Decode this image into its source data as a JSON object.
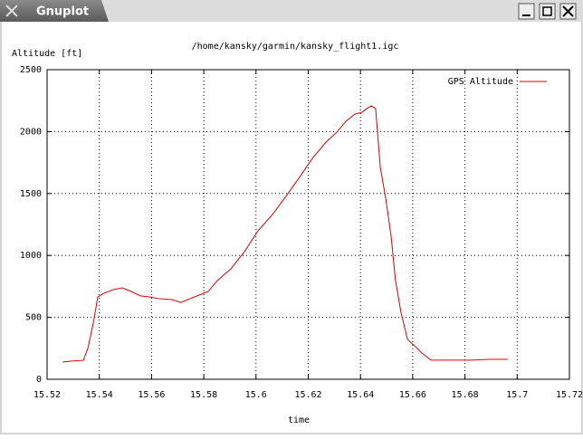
{
  "window": {
    "title": "Gnuplot"
  },
  "chart_data": {
    "type": "line",
    "title": "/home/kansky/garmin/kansky_flight1.igc",
    "ylabel": "Altitude [ft]",
    "xlabel": "time",
    "x": [
      15.5259,
      15.529,
      15.5339,
      15.5356,
      15.5377,
      15.5394,
      15.5418,
      15.5453,
      15.5488,
      15.5522,
      15.5557,
      15.5592,
      15.5626,
      15.5678,
      15.5713,
      15.5748,
      15.5782,
      15.5817,
      15.5852,
      15.5904,
      15.5956,
      15.6008,
      15.606,
      15.6112,
      15.6164,
      15.6216,
      15.6268,
      15.631,
      15.6344,
      15.6379,
      15.6406,
      15.6424,
      15.6441,
      15.6458,
      15.6476,
      15.6497,
      15.6517,
      15.6534,
      15.6555,
      15.658,
      15.6607,
      15.6635,
      15.667,
      15.6718,
      15.6822,
      15.6892,
      15.6964
    ],
    "series": [
      {
        "name": "GPS Altitude",
        "color": "#e00000",
        "values": [
          139,
          146,
          153,
          249,
          453,
          665,
          694,
          724,
          738,
          709,
          673,
          665,
          651,
          643,
          621,
          651,
          680,
          709,
          797,
          892,
          1031,
          1199,
          1323,
          1469,
          1623,
          1784,
          1915,
          1996,
          2083,
          2142,
          2156,
          2186,
          2208,
          2186,
          1711,
          1455,
          1162,
          797,
          541,
          322,
          270,
          212,
          154,
          154,
          154,
          161,
          161
        ]
      }
    ],
    "xlim": [
      15.52,
      15.72
    ],
    "xticks": [
      15.52,
      15.54,
      15.56,
      15.58,
      15.6,
      15.62,
      15.64,
      15.66,
      15.68,
      15.7,
      15.72
    ],
    "ylim": [
      0,
      2500
    ],
    "yticks": [
      0,
      500,
      1000,
      1500,
      2000,
      2500
    ],
    "grid": true,
    "legend": "top-right"
  }
}
